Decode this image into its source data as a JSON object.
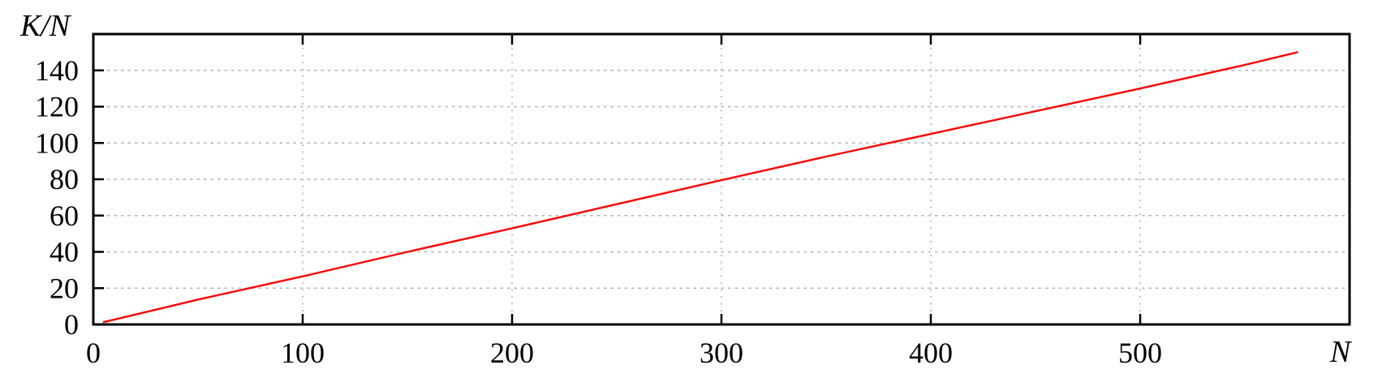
{
  "chart_data": {
    "type": "line",
    "title": "",
    "xlabel": "N",
    "ylabel": "K/N",
    "xlim": [
      0,
      600
    ],
    "ylim": [
      0,
      160
    ],
    "x_ticks": [
      0,
      100,
      200,
      300,
      400,
      500
    ],
    "y_ticks": [
      0,
      20,
      40,
      60,
      80,
      100,
      120,
      140
    ],
    "grid": true,
    "grid_style": "dotted",
    "legend": false,
    "colors": {
      "line": "#ff0000",
      "grid": "#b3b3b3",
      "axis": "#000000"
    },
    "series": [
      {
        "name": "K/N",
        "color": "#ff0000",
        "points": [
          [
            5,
            1.3
          ],
          [
            50,
            13.7
          ],
          [
            100,
            26.5
          ],
          [
            150,
            40
          ],
          [
            200,
            53
          ],
          [
            250,
            66.3
          ],
          [
            300,
            79.5
          ],
          [
            350,
            92.5
          ],
          [
            400,
            105
          ],
          [
            450,
            117.5
          ],
          [
            500,
            130
          ],
          [
            550,
            143
          ],
          [
            575,
            150
          ]
        ]
      }
    ]
  }
}
